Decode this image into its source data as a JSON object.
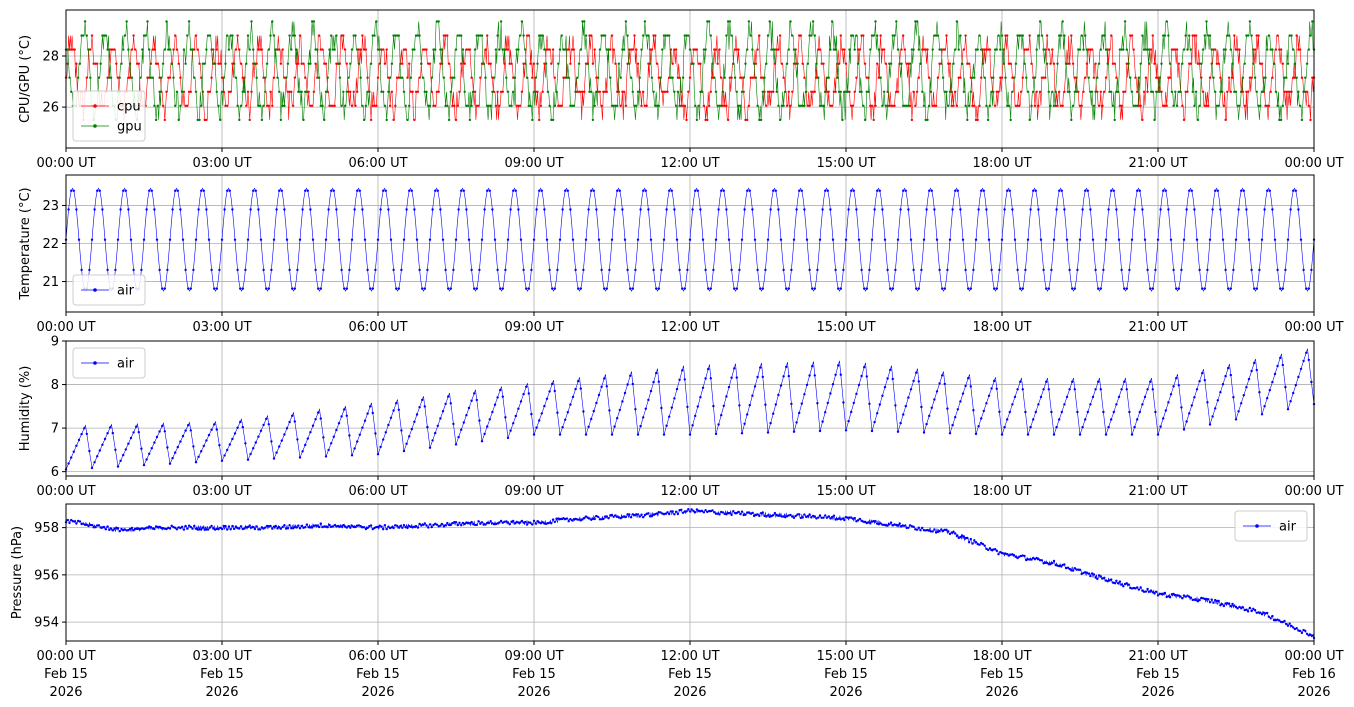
{
  "chart_data": [
    {
      "type": "line",
      "ylabel": "CPU/GPU (°C)",
      "ylim": [
        24.4,
        29.8
      ],
      "yticks": [
        26,
        28
      ],
      "xlim_hours": [
        0,
        24
      ],
      "grid": true,
      "legend_placement": "bottom-left",
      "series": [
        {
          "name": "cpu",
          "color": "#ff0000",
          "mean": 27.0,
          "amplitude": 1.2,
          "period_minutes": 24,
          "noise": 0.5
        },
        {
          "name": "gpu",
          "color": "#008000",
          "mean": 27.2,
          "amplitude": 1.5,
          "period_minutes": 24,
          "noise": 0.5
        }
      ]
    },
    {
      "type": "line",
      "ylabel": "Temperature (°C)",
      "ylim": [
        20.2,
        23.8
      ],
      "yticks": [
        21,
        22,
        23
      ],
      "xlim_hours": [
        0,
        24
      ],
      "grid": true,
      "legend_placement": "bottom-left",
      "series": [
        {
          "name": "air",
          "color": "#0000ff",
          "mean": 22.1,
          "amplitude": 1.35,
          "period_minutes": 30
        }
      ]
    },
    {
      "type": "line",
      "ylabel": "Humidity (%)",
      "ylim": [
        5.9,
        9.0
      ],
      "yticks": [
        6,
        7,
        8,
        9
      ],
      "xlim_hours": [
        0,
        24
      ],
      "grid": true,
      "legend_placement": "top-left",
      "series": [
        {
          "name": "air",
          "color": "#0000ff",
          "period_minutes": 30,
          "baseline": [
            [
              0,
              6.55
            ],
            [
              3,
              6.7
            ],
            [
              6,
              7.0
            ],
            [
              9,
              7.45
            ],
            [
              12,
              7.65
            ],
            [
              15,
              7.75
            ],
            [
              18,
              7.5
            ],
            [
              21,
              7.5
            ],
            [
              24,
              8.2
            ]
          ],
          "amplitude": [
            [
              0,
              0.5
            ],
            [
              3,
              0.45
            ],
            [
              6,
              0.6
            ],
            [
              9,
              0.6
            ],
            [
              12,
              0.8
            ],
            [
              15,
              0.8
            ],
            [
              18,
              0.65
            ],
            [
              21,
              0.65
            ],
            [
              24,
              0.65
            ]
          ]
        }
      ]
    },
    {
      "type": "line",
      "ylabel": "Pressure (hPa)",
      "ylim": [
        953.2,
        959.0
      ],
      "yticks": [
        954,
        956,
        958
      ],
      "xlim_hours": [
        0,
        24
      ],
      "grid": true,
      "legend_placement": "top-right",
      "series": [
        {
          "name": "air",
          "color": "#0000ff",
          "x_hours": [
            0,
            1,
            2,
            3,
            4,
            5,
            6,
            7,
            8,
            9,
            10,
            11,
            12,
            13,
            14,
            15,
            16,
            17,
            18,
            19,
            20,
            21,
            22,
            23,
            24
          ],
          "values": [
            958.3,
            957.9,
            958.0,
            958.0,
            958.0,
            958.1,
            958.0,
            958.1,
            958.2,
            958.2,
            958.4,
            958.5,
            958.7,
            958.6,
            958.5,
            958.4,
            958.1,
            957.8,
            956.9,
            956.5,
            955.8,
            955.2,
            954.9,
            954.4,
            953.4
          ]
        }
      ]
    }
  ],
  "x_ticks": {
    "labels": [
      "00:00 UT",
      "03:00 UT",
      "06:00 UT",
      "09:00 UT",
      "12:00 UT",
      "15:00 UT",
      "18:00 UT",
      "21:00 UT",
      "00:00 UT"
    ],
    "dates_line1": [
      "Feb 15",
      "Feb 15",
      "Feb 15",
      "Feb 15",
      "Feb 15",
      "Feb 15",
      "Feb 15",
      "Feb 15",
      "Feb 16"
    ],
    "dates_line2": [
      "2026",
      "2026",
      "2026",
      "2026",
      "2026",
      "2026",
      "2026",
      "2026",
      "2026"
    ]
  }
}
